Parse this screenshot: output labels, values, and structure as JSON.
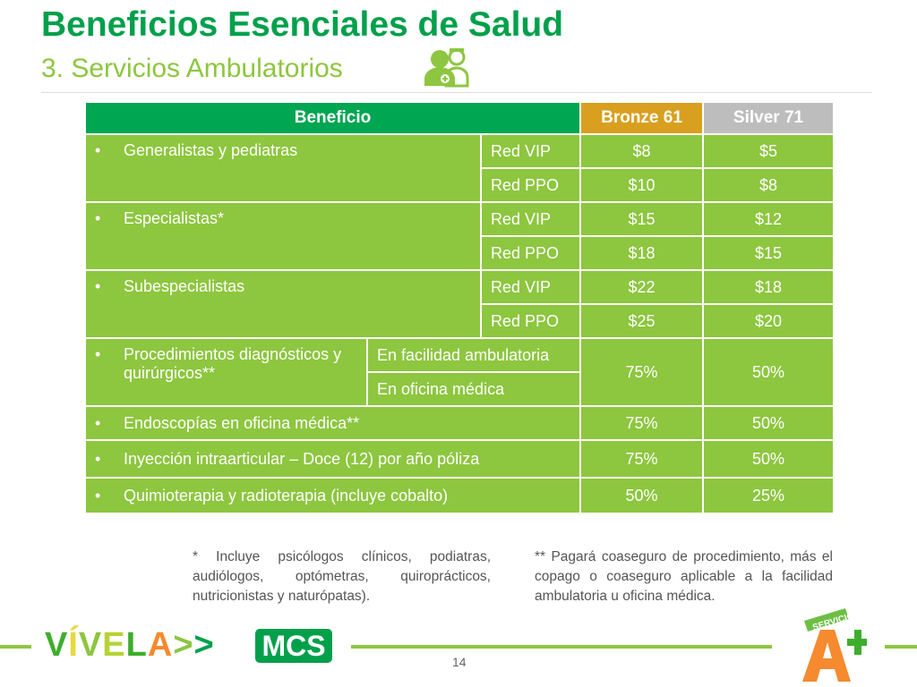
{
  "header": {
    "title": "Beneficios Esenciales de Salud",
    "subtitle": "3. Servicios Ambulatorios",
    "icon": "doctor-nurse-icon"
  },
  "table": {
    "headers": {
      "benefit": "Beneficio",
      "bronze": "Bronze 61",
      "silver": "Silver 71"
    },
    "rows": [
      {
        "benefit": "Generalistas y pediatras",
        "tiers": [
          {
            "net": "Red VIP",
            "bronze": "$8",
            "silver": "$5"
          },
          {
            "net": "Red PPO",
            "bronze": "$10",
            "silver": "$8"
          }
        ]
      },
      {
        "benefit": "Especialistas*",
        "tiers": [
          {
            "net": "Red VIP",
            "bronze": "$15",
            "silver": "$12"
          },
          {
            "net": "Red PPO",
            "bronze": "$18",
            "silver": "$15"
          }
        ]
      },
      {
        "benefit": "Subespecialistas",
        "tiers": [
          {
            "net": "Red VIP",
            "bronze": "$22",
            "silver": "$18"
          },
          {
            "net": "Red PPO",
            "bronze": "$25",
            "silver": "$20"
          }
        ]
      },
      {
        "benefit": "Procedimientos diagnósticos y quirúrgicos**",
        "settings": [
          "En facilidad ambulatoria",
          "En oficina médica"
        ],
        "bronze": "75%",
        "silver": "50%"
      },
      {
        "benefit": "Endoscopías en oficina médica**",
        "bronze": "75%",
        "silver": "50%"
      },
      {
        "benefit": "Inyección intraarticular – Doce (12) por año póliza",
        "bronze": "75%",
        "silver": "50%"
      },
      {
        "benefit": "Quimioterapia y radioterapia (incluye cobalto)",
        "bronze": "50%",
        "silver": "25%"
      }
    ]
  },
  "notes": {
    "note1": "* Incluye psicólogos clínicos, podiatras, audiólogos, optómetras, quiroprácticos, nutricionistas y naturópatas).",
    "note2": "** Pagará coaseguro de procedimiento, más el copago o coaseguro aplicable a la facilidad ambulatoria u oficina médica."
  },
  "footer": {
    "page": "14",
    "logo_vivela": "VÍVELA>>",
    "logo_mcs": "MCS",
    "logo_aplus": "SERVICIO A+ Plus"
  },
  "colors": {
    "title": "#00A04B",
    "accent": "#8DC63F",
    "header": "#00A651",
    "bronze": "#D9A01F",
    "silver": "#BDBDBD"
  }
}
